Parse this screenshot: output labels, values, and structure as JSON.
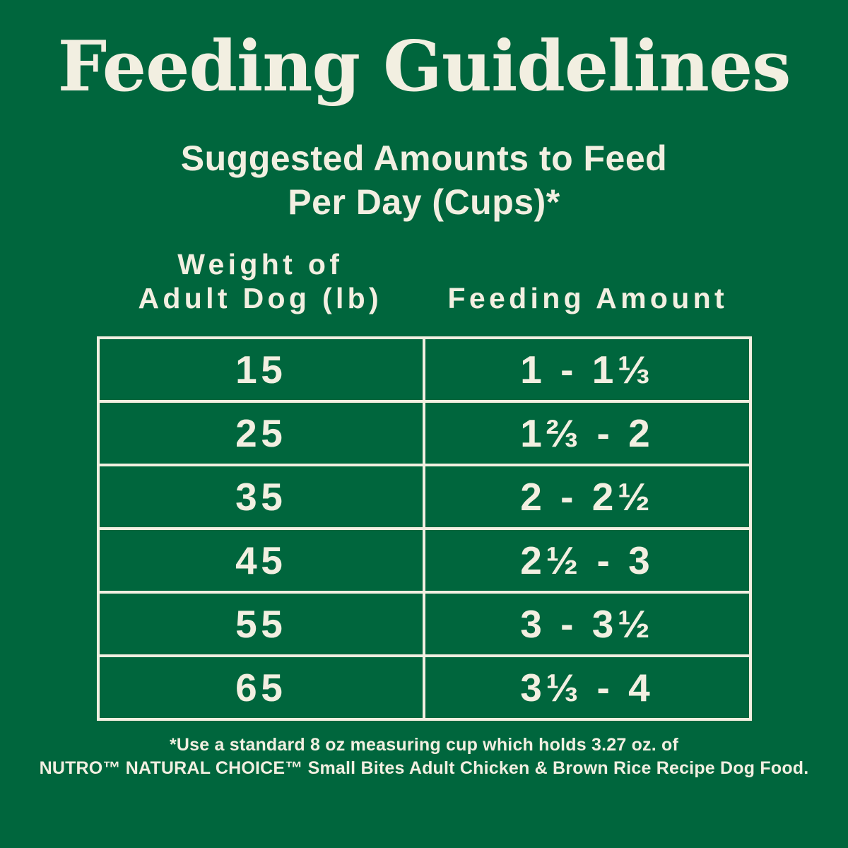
{
  "colors": {
    "background": "#00663D",
    "text": "#F2EFE1",
    "table_border": "#F2EFE1"
  },
  "title": "Feeding Guidelines",
  "subtitle": {
    "line1": "Suggested Amounts to Feed",
    "line2": "Per Day (Cups)*"
  },
  "table": {
    "col1_header_line1": "Weight of",
    "col1_header_line2": "Adult Dog (lb)",
    "col2_header": "Feeding Amount",
    "rows": [
      {
        "weight": "15",
        "amount": "1 - 1⅓"
      },
      {
        "weight": "25",
        "amount": "1⅔ - 2"
      },
      {
        "weight": "35",
        "amount": "2 - 2½"
      },
      {
        "weight": "45",
        "amount": "2½ - 3"
      },
      {
        "weight": "55",
        "amount": "3 - 3½"
      },
      {
        "weight": "65",
        "amount": "3⅓ - 4"
      }
    ]
  },
  "footnote": {
    "line1": "*Use a standard 8 oz measuring cup which holds 3.27 oz. of",
    "line2": "NUTRO™ NATURAL CHOICE™ Small Bites Adult Chicken & Brown Rice Recipe Dog Food."
  }
}
